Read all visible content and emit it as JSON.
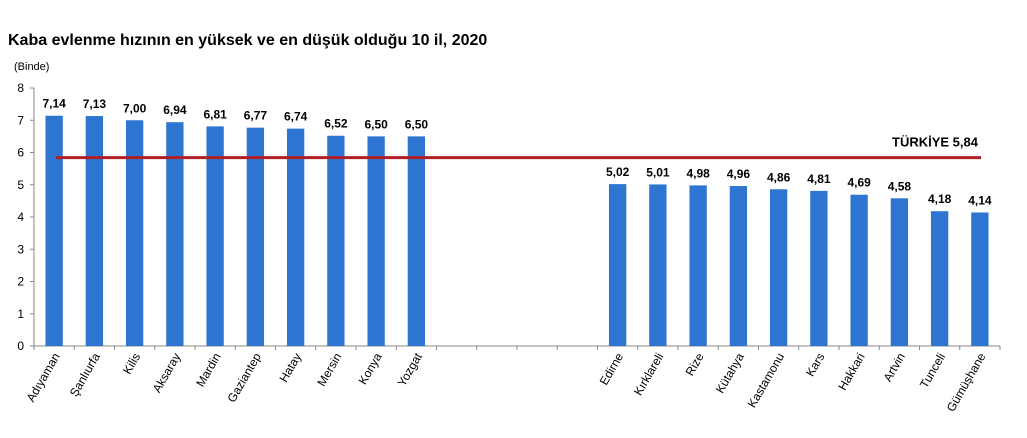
{
  "chart_data": {
    "type": "bar",
    "title": "Kaba evlenme hızının en yüksek ve en düşük olduğu 10 il, 2020",
    "ylabel": "(Binde)",
    "xlabel": "",
    "ylim": [
      0,
      8
    ],
    "yticks": [
      "0",
      "1",
      "2",
      "3",
      "4",
      "5",
      "6",
      "7",
      "8"
    ],
    "bar_color": "#2E75D2",
    "reference_color": "#B01F24",
    "groups": [
      {
        "name": "highest",
        "categories": [
          "Adıyaman",
          "Şanlıurfa",
          "Kilis",
          "Aksaray",
          "Mardin",
          "Gaziantep",
          "Hatay",
          "Mersin",
          "Konya",
          "Yozgat"
        ],
        "values": [
          7.14,
          7.13,
          7.0,
          6.94,
          6.81,
          6.77,
          6.74,
          6.52,
          6.5,
          6.5
        ],
        "labels": [
          "7,14",
          "7,13",
          "7,00",
          "6,94",
          "6,81",
          "6,77",
          "6,74",
          "6,52",
          "6,50",
          "6,50"
        ]
      },
      {
        "name": "lowest",
        "categories": [
          "Edirne",
          "Kırklareli",
          "Rize",
          "Kütahya",
          "Kastamonu",
          "Kars",
          "Hakkari",
          "Artvin",
          "Tunceli",
          "Gümüşhane"
        ],
        "values": [
          5.02,
          5.01,
          4.98,
          4.96,
          4.86,
          4.81,
          4.69,
          4.58,
          4.18,
          4.14
        ],
        "labels": [
          "5,02",
          "5,01",
          "4,98",
          "4,96",
          "4,86",
          "4,81",
          "4,69",
          "4,58",
          "4,18",
          "4,14"
        ]
      }
    ],
    "reference_line": {
      "label": "TÜRKİYE 5,84",
      "value": 5.84
    }
  }
}
